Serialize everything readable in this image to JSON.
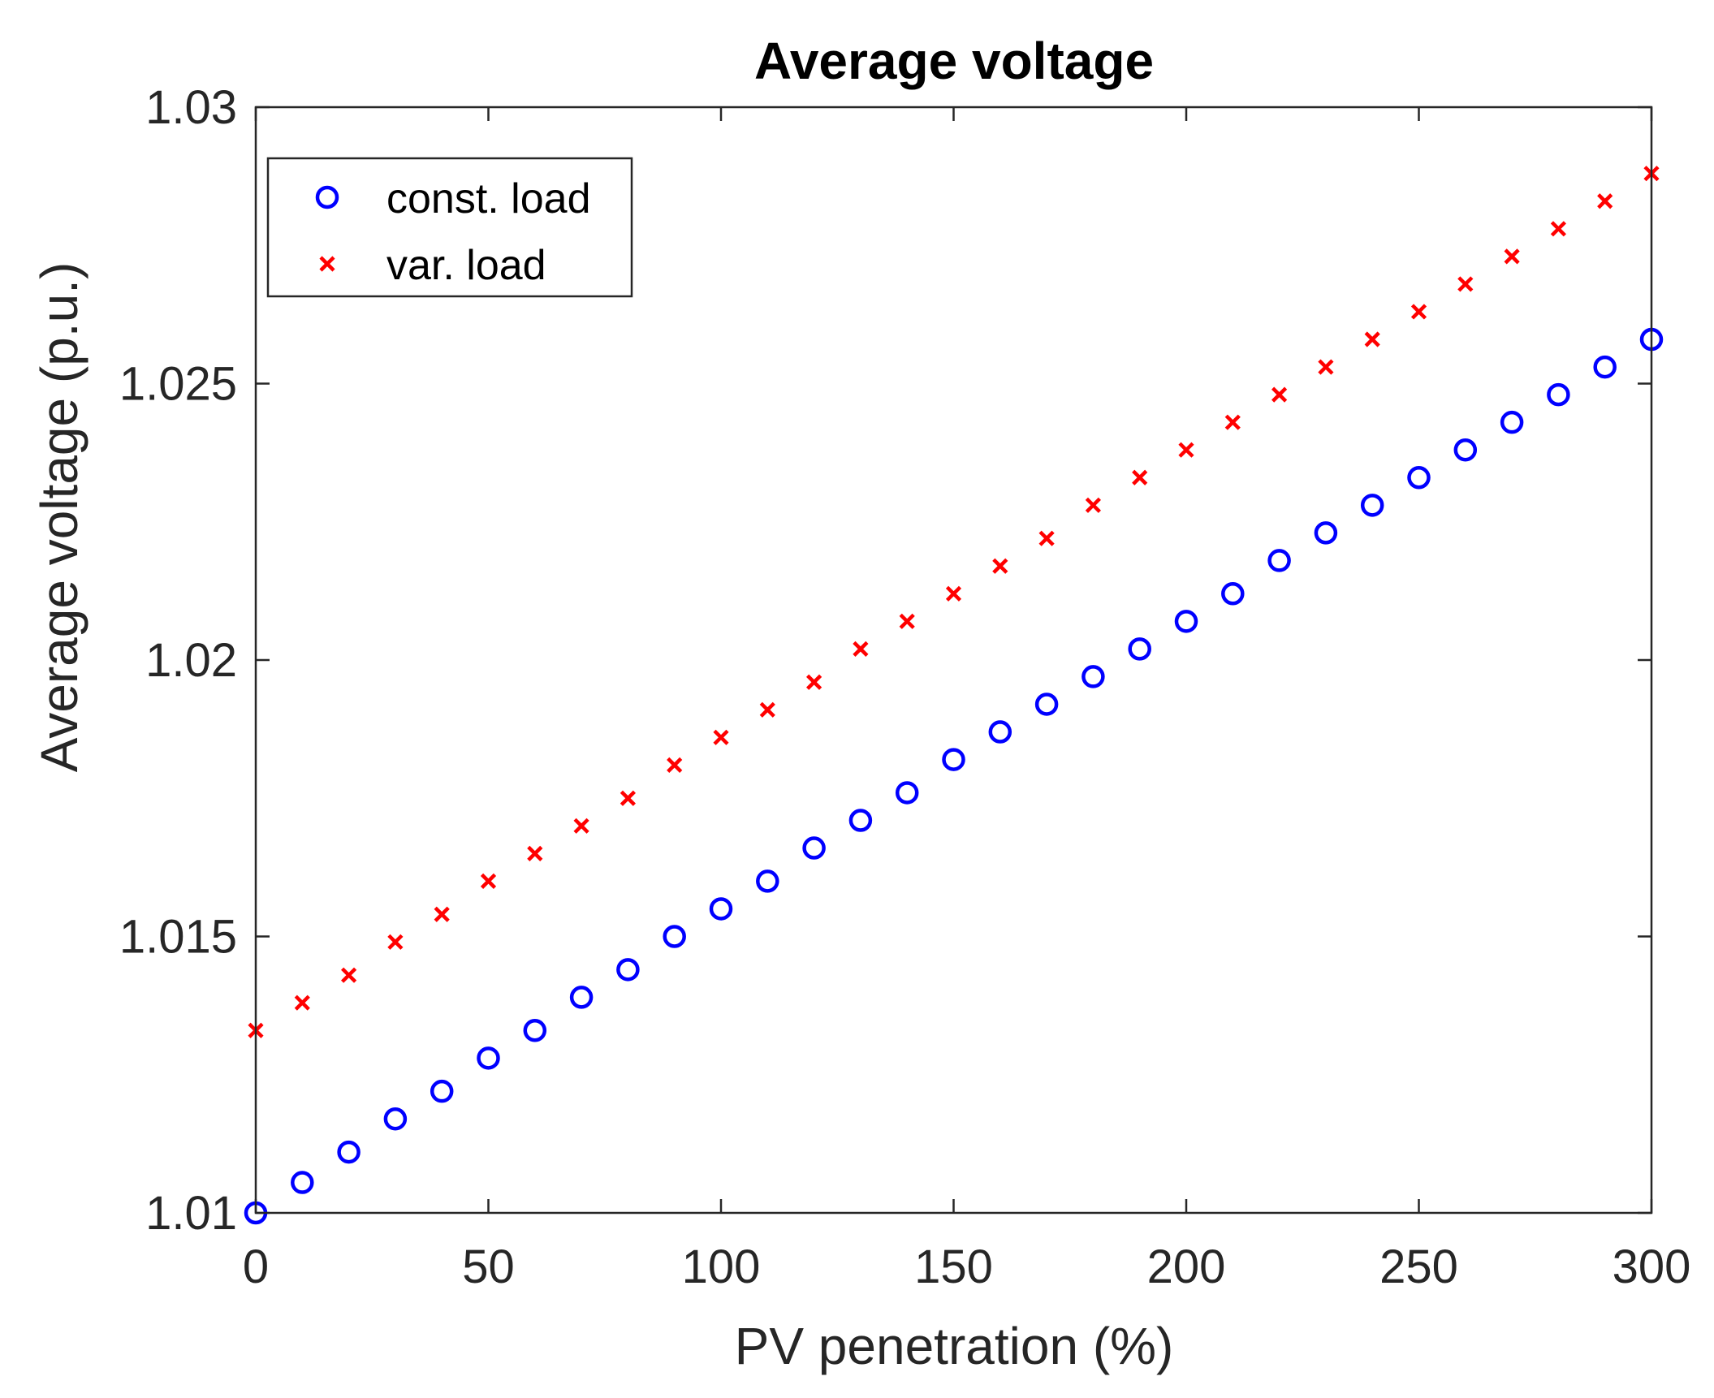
{
  "chart_data": {
    "type": "scatter",
    "title": "Average voltage",
    "xlabel": "PV penetration (%)",
    "ylabel": "Average voltage (p.u.)",
    "xlim": [
      0,
      300
    ],
    "ylim": [
      1.01,
      1.03
    ],
    "xticks": [
      0,
      50,
      100,
      150,
      200,
      250,
      300
    ],
    "yticks": [
      1.01,
      1.015,
      1.02,
      1.025,
      1.03
    ],
    "xtick_labels": [
      "0",
      "50",
      "100",
      "150",
      "200",
      "250",
      "300"
    ],
    "ytick_labels": [
      "1.01",
      "1.015",
      "1.02",
      "1.025",
      "1.03"
    ],
    "grid": false,
    "legend_position": "top-left",
    "series": [
      {
        "name": "const. load",
        "marker": "circle",
        "color": "#0000ff",
        "x": [
          0,
          10,
          20,
          30,
          40,
          50,
          60,
          70,
          80,
          90,
          100,
          110,
          120,
          130,
          140,
          150,
          160,
          170,
          180,
          190,
          200,
          210,
          220,
          230,
          240,
          250,
          260,
          270,
          280,
          290,
          300
        ],
        "y": [
          1.01,
          1.01055,
          1.0111,
          1.0117,
          1.0122,
          1.0128,
          1.0133,
          1.0139,
          1.0144,
          1.015,
          1.0155,
          1.016,
          1.0166,
          1.0171,
          1.0176,
          1.0182,
          1.0187,
          1.0192,
          1.0197,
          1.0202,
          1.0207,
          1.0212,
          1.0218,
          1.0223,
          1.0228,
          1.0233,
          1.0238,
          1.0243,
          1.0248,
          1.0253,
          1.0258
        ]
      },
      {
        "name": "var. load",
        "marker": "x",
        "color": "#ff0000",
        "x": [
          0,
          10,
          20,
          30,
          40,
          50,
          60,
          70,
          80,
          90,
          100,
          110,
          120,
          130,
          140,
          150,
          160,
          170,
          180,
          190,
          200,
          210,
          220,
          230,
          240,
          250,
          260,
          270,
          280,
          290,
          300
        ],
        "y": [
          1.0133,
          1.0138,
          1.0143,
          1.0149,
          1.0154,
          1.016,
          1.0165,
          1.017,
          1.0175,
          1.0181,
          1.0186,
          1.0191,
          1.0196,
          1.0202,
          1.0207,
          1.0212,
          1.0217,
          1.0222,
          1.0228,
          1.0233,
          1.0238,
          1.0243,
          1.0248,
          1.0253,
          1.0258,
          1.0263,
          1.0268,
          1.0273,
          1.0278,
          1.0283,
          1.0288
        ]
      }
    ]
  }
}
